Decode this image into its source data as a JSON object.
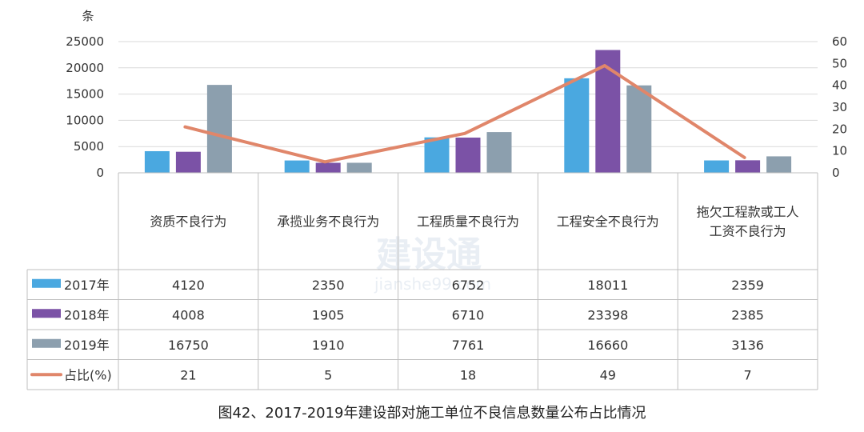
{
  "chart_data": {
    "type": "bar",
    "categories": [
      "资质不良行为",
      "承揽业务不良行为",
      "工程质量不良行为",
      "工程安全不良行为",
      "拖欠工程款或工人工资不良行为"
    ],
    "category_lines": [
      [
        "资质不良行为"
      ],
      [
        "承揽业务不良行为"
      ],
      [
        "工程质量不良行为"
      ],
      [
        "工程安全不良行为"
      ],
      [
        "拖欠工程款或工人",
        "工资不良行为"
      ]
    ],
    "series": [
      {
        "name": "2017年",
        "type": "bar",
        "color": "#4aa8e0",
        "values": [
          4120,
          2350,
          6752,
          18011,
          2359
        ]
      },
      {
        "name": "2018年",
        "type": "bar",
        "color": "#7b52a6",
        "values": [
          4008,
          1905,
          6710,
          23398,
          2385
        ]
      },
      {
        "name": "2019年",
        "type": "bar",
        "color": "#8c9fae",
        "values": [
          16750,
          1910,
          7761,
          16660,
          3136
        ]
      },
      {
        "name": "占比(%)",
        "type": "line",
        "axis": "right",
        "color": "#e0866a",
        "values": [
          21,
          5,
          18,
          49,
          7
        ]
      }
    ],
    "ylabel": "条",
    "ylim": [
      0,
      25000
    ],
    "yticks": [
      0,
      5000,
      10000,
      15000,
      20000,
      25000
    ],
    "y2lim": [
      0,
      60
    ],
    "y2ticks": [
      0,
      10,
      20,
      30,
      40,
      50,
      60
    ],
    "grid": true,
    "legend": "data-table-left",
    "title": "图42、2017-2019年建设部对施工单位不良信息数量公布占比情况"
  },
  "watermark": {
    "main": "建设通",
    "sub": "jianshe99.com"
  }
}
